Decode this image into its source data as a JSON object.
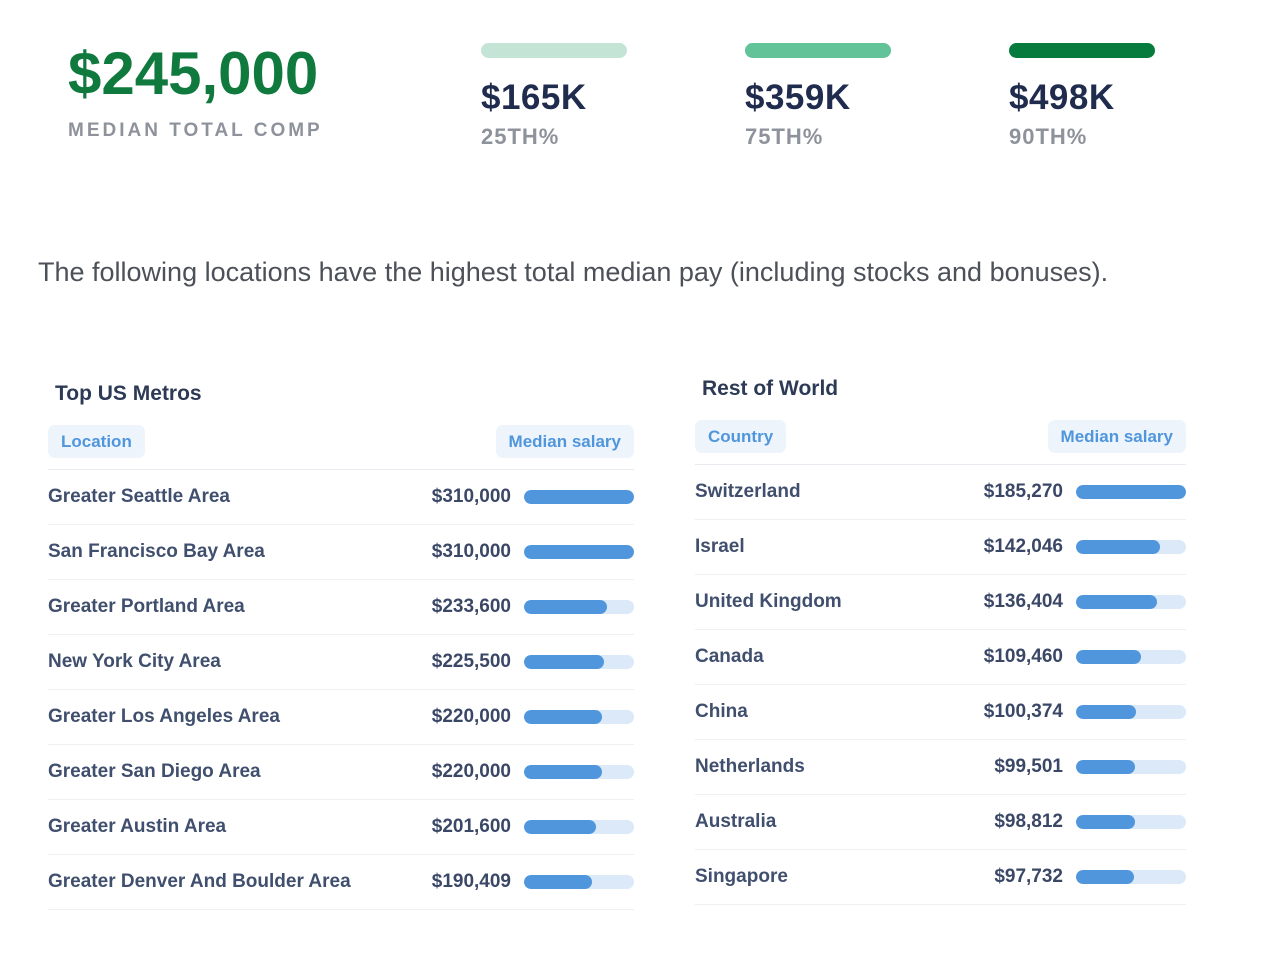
{
  "hero": {
    "value": "$245,000",
    "label": "MEDIAN TOTAL COMP"
  },
  "percentiles": [
    {
      "value": "$165K",
      "label": "25TH%",
      "bar_color": "#c4e5d5"
    },
    {
      "value": "$359K",
      "label": "75TH%",
      "bar_color": "#62c298"
    },
    {
      "value": "$498K",
      "label": "90TH%",
      "bar_color": "#067b3d"
    }
  ],
  "description": "The following locations have the highest total median pay (including stocks and bonuses).",
  "tables": [
    {
      "title": "Top US Metros",
      "columns": [
        "Location",
        "Median salary"
      ],
      "rows": [
        {
          "label": "Greater Seattle Area",
          "salary": "$310,000",
          "value": 310000
        },
        {
          "label": "San Francisco Bay Area",
          "salary": "$310,000",
          "value": 310000
        },
        {
          "label": "Greater Portland Area",
          "salary": "$233,600",
          "value": 233600
        },
        {
          "label": "New York City Area",
          "salary": "$225,500",
          "value": 225500
        },
        {
          "label": "Greater Los Angeles Area",
          "salary": "$220,000",
          "value": 220000
        },
        {
          "label": "Greater San Diego Area",
          "salary": "$220,000",
          "value": 220000
        },
        {
          "label": "Greater Austin Area",
          "salary": "$201,600",
          "value": 201600
        },
        {
          "label": "Greater Denver And Boulder Area",
          "salary": "$190,409",
          "value": 190409
        }
      ]
    },
    {
      "title": "Rest of World",
      "columns": [
        "Country",
        "Median salary"
      ],
      "rows": [
        {
          "label": "Switzerland",
          "salary": "$185,270",
          "value": 185270
        },
        {
          "label": "Israel",
          "salary": "$142,046",
          "value": 142046
        },
        {
          "label": "United Kingdom",
          "salary": "$136,404",
          "value": 136404
        },
        {
          "label": "Canada",
          "salary": "$109,460",
          "value": 109460
        },
        {
          "label": "China",
          "salary": "$100,374",
          "value": 100374
        },
        {
          "label": "Netherlands",
          "salary": "$99,501",
          "value": 99501
        },
        {
          "label": "Australia",
          "salary": "$98,812",
          "value": 98812
        },
        {
          "label": "Singapore",
          "salary": "$97,732",
          "value": 97732
        }
      ]
    }
  ],
  "colors": {
    "accent_green": "#107a3e",
    "pill_green_light": "#c4e5d5",
    "pill_green_mid": "#62c298",
    "pill_green_dark": "#067b3d",
    "stat_navy": "#202c4e",
    "label_gray": "#8e939b",
    "bar_blue": "#4f96dc",
    "bar_track": "#dbe9f9",
    "header_chip_bg": "#edf4fc",
    "header_chip_text": "#4f96dc"
  },
  "chart_data": [
    {
      "type": "bar",
      "title": "Total compensation percentiles",
      "categories": [
        "25TH%",
        "MEDIAN",
        "75TH%",
        "90TH%"
      ],
      "values": [
        165000,
        245000,
        359000,
        498000
      ],
      "annotations": [
        "$165K",
        "$245,000",
        "$359K",
        "$498K"
      ],
      "legend_position": "none",
      "grid": false
    },
    {
      "type": "table",
      "title": "Top US Metros",
      "columns": [
        "Location",
        "Median salary"
      ],
      "categories": [
        "Greater Seattle Area",
        "San Francisco Bay Area",
        "Greater Portland Area",
        "New York City Area",
        "Greater Los Angeles Area",
        "Greater San Diego Area",
        "Greater Austin Area",
        "Greater Denver And Boulder Area"
      ],
      "values": [
        310000,
        310000,
        233600,
        225500,
        220000,
        220000,
        201600,
        190409
      ],
      "bar_scale_max": 310000
    },
    {
      "type": "table",
      "title": "Rest of World",
      "columns": [
        "Country",
        "Median salary"
      ],
      "categories": [
        "Switzerland",
        "Israel",
        "United Kingdom",
        "Canada",
        "China",
        "Netherlands",
        "Australia",
        "Singapore"
      ],
      "values": [
        185270,
        142046,
        136404,
        109460,
        100374,
        99501,
        98812,
        97732
      ],
      "bar_scale_max": 185270
    }
  ]
}
